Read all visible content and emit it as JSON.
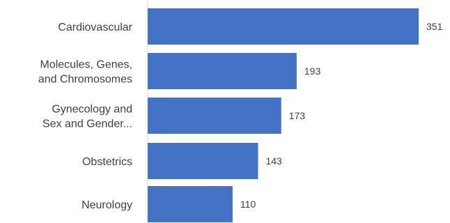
{
  "chart_data": {
    "type": "bar",
    "orientation": "horizontal",
    "categories": [
      [
        "Cardiovascular"
      ],
      [
        "Molecules, Genes,",
        "and Chromosomes"
      ],
      [
        "Gynecology and",
        "Sex and Gender..."
      ],
      [
        "Obstetrics"
      ],
      [
        "Neurology"
      ]
    ],
    "values": [
      351,
      193,
      173,
      143,
      110
    ],
    "bar_color": "#4472C4",
    "text_color": "#404040",
    "xlim": [
      0,
      351
    ],
    "grid": false,
    "title": "",
    "xlabel": "",
    "ylabel": ""
  }
}
